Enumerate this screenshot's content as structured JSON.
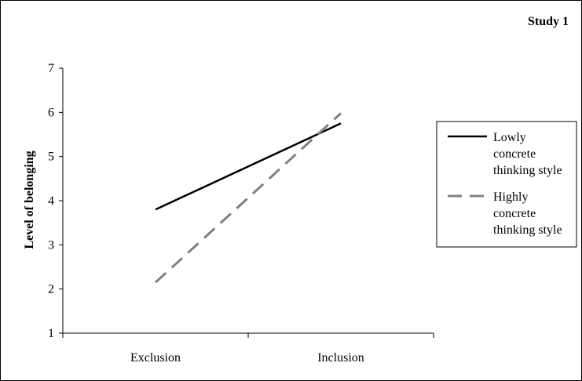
{
  "chart_data": {
    "type": "line",
    "title": "Study 1",
    "xlabel": "",
    "ylabel": "Level of belonging",
    "categories": [
      "Exclusion",
      "Inclusion"
    ],
    "ylim": [
      1,
      7
    ],
    "yticks": [
      1,
      2,
      3,
      4,
      5,
      6,
      7
    ],
    "grid": false,
    "legend_position": "right",
    "series": [
      {
        "name": "Lowly concrete thinking style",
        "legend_lines": [
          "Lowly",
          "concrete",
          "thinking style"
        ],
        "values": [
          3.8,
          5.75
        ],
        "color": "#000000",
        "dash": "solid"
      },
      {
        "name": "Highly concrete thinking style",
        "legend_lines": [
          "Highly",
          "concrete",
          "thinking style"
        ],
        "values": [
          2.15,
          5.98
        ],
        "color": "#808080",
        "dash": "dashed"
      }
    ]
  }
}
